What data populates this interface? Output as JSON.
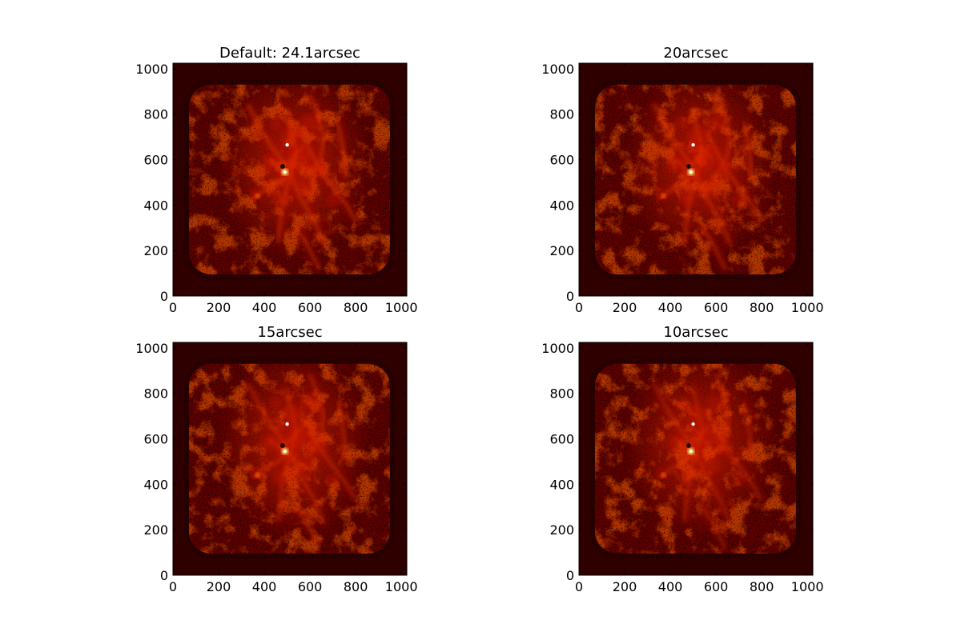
{
  "chart_data": [
    {
      "type": "heatmap",
      "title": "Default: 24.1arcsec",
      "xlim": [
        0,
        1024
      ],
      "ylim": [
        0,
        1024
      ],
      "xticks": [
        0,
        200,
        400,
        600,
        800,
        1000
      ],
      "yticks": [
        0,
        200,
        400,
        600,
        800,
        1000
      ],
      "colormap": "hot",
      "xlabel": "",
      "ylabel": ""
    },
    {
      "type": "heatmap",
      "title": "20arcsec",
      "xlim": [
        0,
        1024
      ],
      "ylim": [
        0,
        1024
      ],
      "xticks": [
        0,
        200,
        400,
        600,
        800,
        1000
      ],
      "yticks": [
        0,
        200,
        400,
        600,
        800,
        1000
      ],
      "colormap": "hot",
      "xlabel": "",
      "ylabel": ""
    },
    {
      "type": "heatmap",
      "title": "15arcsec",
      "xlim": [
        0,
        1024
      ],
      "ylim": [
        0,
        1024
      ],
      "xticks": [
        0,
        200,
        400,
        600,
        800,
        1000
      ],
      "yticks": [
        0,
        200,
        400,
        600,
        800,
        1000
      ],
      "colormap": "hot",
      "xlabel": "",
      "ylabel": ""
    },
    {
      "type": "heatmap",
      "title": "10arcsec",
      "xlim": [
        0,
        1024
      ],
      "ylim": [
        0,
        1024
      ],
      "xticks": [
        0,
        200,
        400,
        600,
        800,
        1000
      ],
      "yticks": [
        0,
        200,
        400,
        600,
        800,
        1000
      ],
      "colormap": "hot",
      "xlabel": "",
      "ylabel": ""
    }
  ],
  "colors": {
    "background_dark": "#2e0000",
    "map_base": "#5a0000",
    "emission_mid": "#c81400",
    "emission_high": "#ff5a00",
    "emission_peak": "#ffff78"
  }
}
